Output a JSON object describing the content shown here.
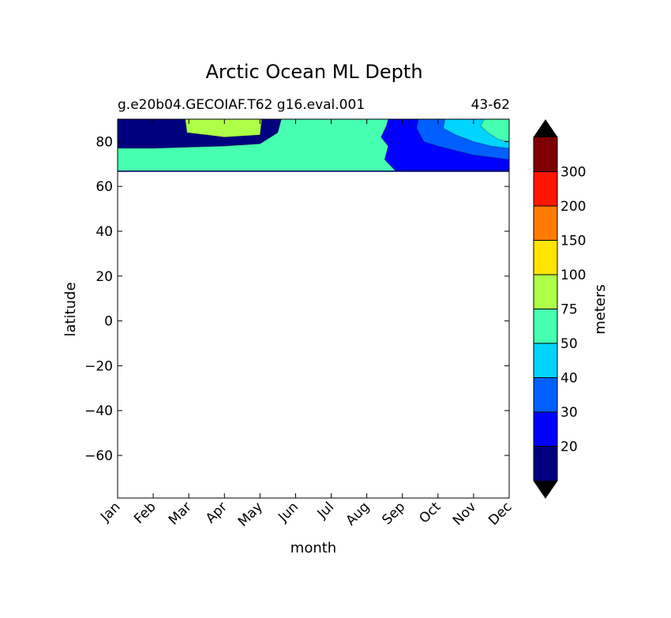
{
  "chart_data": {
    "type": "heatmap",
    "title": "Arctic Ocean ML Depth",
    "subtitle_left": "g.e20b04.GECOIAF.T62 g16.eval.001",
    "subtitle_right": "43-62",
    "xlabel": "month",
    "ylabel": "latitude",
    "x_categories": [
      "Jan",
      "Feb",
      "Mar",
      "Apr",
      "May",
      "Jun",
      "Jul",
      "Aug",
      "Sep",
      "Oct",
      "Nov",
      "Dec"
    ],
    "xlim": [
      0,
      11
    ],
    "ylim": [
      -79,
      90
    ],
    "y_ticks": [
      80,
      60,
      40,
      20,
      0,
      -20,
      -40,
      -60
    ],
    "y_tick_labels": [
      "80",
      "60",
      "40",
      "20",
      "0",
      "−20",
      "−40",
      "−60"
    ],
    "data_lat_range": [
      66.5,
      90
    ],
    "colorbar": {
      "label": "meters",
      "levels": [
        20,
        30,
        40,
        50,
        75,
        100,
        150,
        200,
        300
      ],
      "level_labels": [
        "20",
        "30",
        "40",
        "50",
        "75",
        "100",
        "150",
        "200",
        "300"
      ],
      "colors": [
        "#00007f",
        "#0000ff",
        "#005fff",
        "#00d4ff",
        "#46ffb0",
        "#aeff48",
        "#ffe500",
        "#ff7b00",
        "#ff1600",
        "#7f0000"
      ],
      "extend": "both",
      "under_color": "#000000",
      "over_color": "#000000"
    },
    "regions": [
      {
        "name": "20-30 m band",
        "color": "#0000ff",
        "outline": [
          [
            0,
            71.5
          ],
          [
            1,
            71.5
          ],
          [
            2,
            71.2
          ],
          [
            3,
            71
          ],
          [
            4,
            71
          ],
          [
            5,
            72
          ],
          [
            5.4,
            90
          ],
          [
            11,
            90
          ],
          [
            11,
            67
          ],
          [
            0,
            67
          ]
        ]
      },
      {
        "name": "30-40 m band",
        "color": "#005fff",
        "outline": [
          [
            0,
            73
          ],
          [
            1,
            73
          ],
          [
            2,
            72.8
          ],
          [
            3,
            72.5
          ],
          [
            4,
            73
          ],
          [
            5,
            76
          ],
          [
            5.1,
            90
          ],
          [
            11,
            90
          ],
          [
            11,
            67
          ],
          [
            0,
            67
          ]
        ]
      },
      {
        "name": "40-50 m band",
        "color": "#00d4ff",
        "outline": [
          [
            0,
            75
          ],
          [
            1,
            75
          ],
          [
            2,
            75
          ],
          [
            3,
            75
          ],
          [
            4,
            76.5
          ],
          [
            4.8,
            82
          ],
          [
            4.9,
            90
          ],
          [
            11,
            90
          ],
          [
            11,
            67
          ],
          [
            0,
            67
          ]
        ]
      },
      {
        "name": "50-75 m band",
        "color": "#46ffb0",
        "outline": [
          [
            0,
            77
          ],
          [
            1,
            77
          ],
          [
            2,
            77.5
          ],
          [
            3,
            78
          ],
          [
            4,
            79
          ],
          [
            4.5,
            84
          ],
          [
            4.6,
            90
          ],
          [
            11,
            90
          ],
          [
            11,
            67
          ],
          [
            0,
            67
          ]
        ]
      },
      {
        "name": "75-100 m core",
        "color": "#aeff48",
        "outline": [
          [
            1.9,
            90
          ],
          [
            1.95,
            84
          ],
          [
            2.5,
            83
          ],
          [
            3,
            82
          ],
          [
            4,
            83
          ],
          [
            4.05,
            90
          ]
        ]
      },
      {
        "name": "autumn 20-30 m",
        "color": "#0000ff",
        "outline": [
          [
            7.6,
            90
          ],
          [
            7.55,
            87
          ],
          [
            7.4,
            82
          ],
          [
            7.6,
            78
          ],
          [
            7.5,
            72
          ],
          [
            7.8,
            67
          ],
          [
            11,
            67
          ],
          [
            11,
            90
          ]
        ]
      },
      {
        "name": "autumn 30-40 m",
        "color": "#005fff",
        "outline": [
          [
            8.45,
            90
          ],
          [
            8.4,
            86
          ],
          [
            8.6,
            80
          ],
          [
            9,
            78
          ],
          [
            9.5,
            76
          ],
          [
            10,
            74
          ],
          [
            11,
            72
          ],
          [
            11,
            90
          ]
        ]
      },
      {
        "name": "autumn 40-50 m",
        "color": "#00d4ff",
        "outline": [
          [
            9.2,
            90
          ],
          [
            9.15,
            86
          ],
          [
            9.5,
            83
          ],
          [
            10,
            80
          ],
          [
            10.5,
            78
          ],
          [
            11,
            77
          ],
          [
            11,
            90
          ]
        ]
      },
      {
        "name": "autumn 50-75 m",
        "color": "#46ffb0",
        "outline": [
          [
            10.3,
            90
          ],
          [
            10.2,
            87
          ],
          [
            10.4,
            84
          ],
          [
            10.7,
            81
          ],
          [
            11,
            80
          ],
          [
            11,
            90
          ]
        ]
      }
    ],
    "base_color": "#00007f"
  }
}
